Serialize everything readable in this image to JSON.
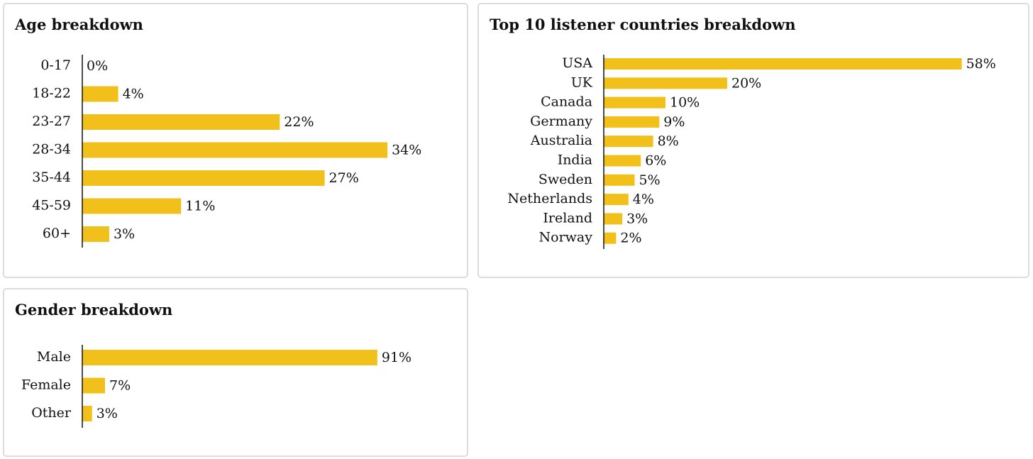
{
  "colors": {
    "bar": "#f2c01a",
    "axis": "#111111",
    "text": "#111111",
    "card_border": "#dcdcdc"
  },
  "chart_data": [
    {
      "id": "age",
      "type": "bar",
      "orientation": "horizontal",
      "title": "Age breakdown",
      "categories": [
        "0-17",
        "18-22",
        "23-27",
        "28-34",
        "35-44",
        "45-59",
        "60+"
      ],
      "values": [
        0,
        4,
        22,
        34,
        27,
        11,
        3
      ],
      "value_labels": [
        "0%",
        "4%",
        "22%",
        "34%",
        "27%",
        "11%",
        "3%"
      ],
      "xlabel": "",
      "ylabel": "",
      "grid": false,
      "legend": "none"
    },
    {
      "id": "country",
      "type": "bar",
      "orientation": "horizontal",
      "title": "Top 10 listener countries breakdown",
      "categories": [
        "USA",
        "UK",
        "Canada",
        "Germany",
        "Australia",
        "India",
        "Sweden",
        "Netherlands",
        "Ireland",
        "Norway"
      ],
      "values": [
        58,
        20,
        10,
        9,
        8,
        6,
        5,
        4,
        3,
        2
      ],
      "value_labels": [
        "58%",
        "20%",
        "10%",
        "9%",
        "8%",
        "6%",
        "5%",
        "4%",
        "3%",
        "2%"
      ],
      "xlabel": "",
      "ylabel": "",
      "grid": false,
      "legend": "none"
    },
    {
      "id": "gender",
      "type": "bar",
      "orientation": "horizontal",
      "title": "Gender breakdown",
      "categories": [
        "Male",
        "Female",
        "Other"
      ],
      "values": [
        91,
        7,
        3
      ],
      "value_labels": [
        "91%",
        "7%",
        "3%"
      ],
      "xlabel": "",
      "ylabel": "",
      "grid": false,
      "legend": "none"
    }
  ]
}
